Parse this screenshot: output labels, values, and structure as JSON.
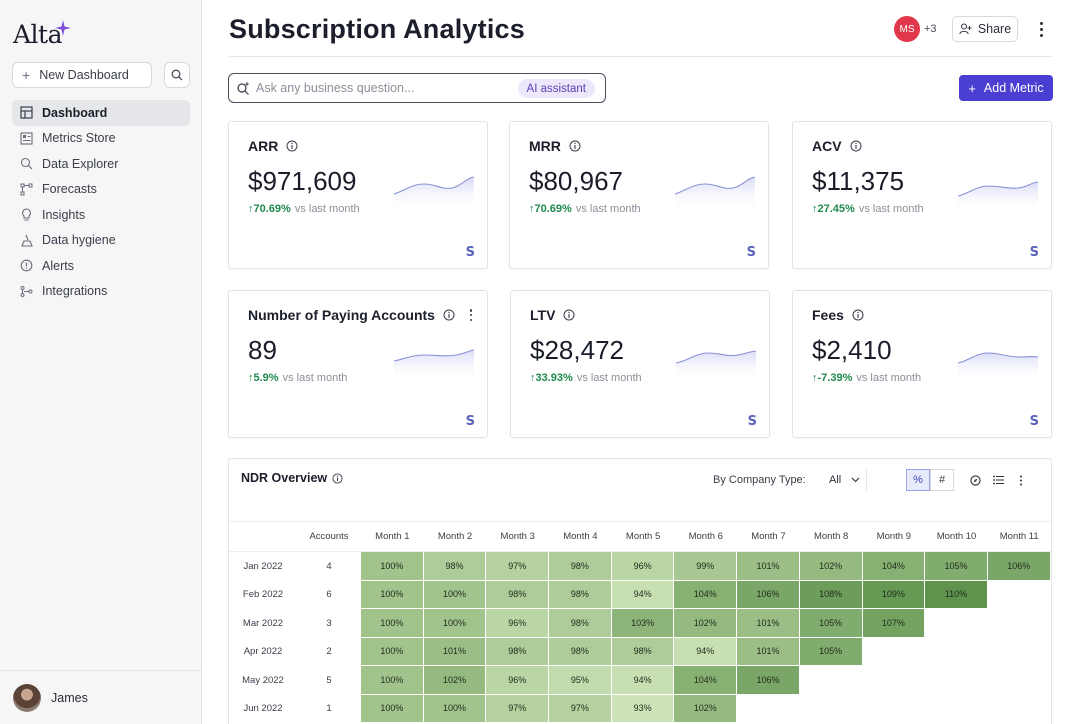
{
  "app": {
    "logo": "Alta",
    "new_dashboard_label": "New Dashboard",
    "accent_color": "#4a3fd1"
  },
  "sidebar": {
    "items": [
      {
        "label": "Dashboard",
        "icon": "dashboard-icon",
        "active": true
      },
      {
        "label": "Metrics Store",
        "icon": "metrics-store-icon"
      },
      {
        "label": "Data Explorer",
        "icon": "data-explorer-icon"
      },
      {
        "label": "Forecasts",
        "icon": "forecasts-icon"
      },
      {
        "label": "Insights",
        "icon": "insights-icon"
      },
      {
        "label": "Data hygiene",
        "icon": "data-hygiene-icon"
      },
      {
        "label": "Alerts",
        "icon": "alerts-icon"
      },
      {
        "label": "Integrations",
        "icon": "integrations-icon"
      }
    ],
    "user_name": "James"
  },
  "header": {
    "title": "Subscription Analytics",
    "collaborator_initials": "MS",
    "collaborator_extra": "+3",
    "share_label": "Share"
  },
  "ask": {
    "placeholder": "Ask any business question...",
    "ai_label": "AI assistant"
  },
  "add_metric_label": "Add Metric",
  "metrics": [
    {
      "title": "ARR",
      "value": "$971,609",
      "change": "70.69%",
      "vs": "vs last month"
    },
    {
      "title": "MRR",
      "value": "$80,967",
      "change": "70.69%",
      "vs": "vs last month"
    },
    {
      "title": "ACV",
      "value": "$11,375",
      "change": "27.45%",
      "vs": "vs last month"
    },
    {
      "title": "Number of Paying Accounts",
      "value": "89",
      "change": "5.9%",
      "vs": "vs last month"
    },
    {
      "title": "LTV",
      "value": "$28,472",
      "change": "33.93%",
      "vs": "vs last month"
    },
    {
      "title": "Fees",
      "value": "$2,410",
      "change": "-7.39%",
      "vs": "vs last month"
    }
  ],
  "ndr": {
    "title": "NDR Overview",
    "filter_label": "By Company Type:",
    "filter_value": "All",
    "headers": {
      "accounts": "Accounts",
      "months": [
        "Month 1",
        "Month 2",
        "Month 3",
        "Month 4",
        "Month 5",
        "Month 6",
        "Month 7",
        "Month 8",
        "Month 9",
        "Month 10",
        "Month 11"
      ]
    },
    "rows": [
      {
        "month": "Jan 2022",
        "accounts": "4",
        "values": [
          100,
          98,
          97,
          98,
          96,
          99,
          101,
          102,
          104,
          105,
          106
        ]
      },
      {
        "month": "Feb 2022",
        "accounts": "6",
        "values": [
          100,
          100,
          98,
          98,
          94,
          104,
          106,
          108,
          109,
          110
        ]
      },
      {
        "month": "Mar 2022",
        "accounts": "3",
        "values": [
          100,
          100,
          96,
          98,
          103,
          102,
          101,
          105,
          107
        ]
      },
      {
        "month": "Apr 2022",
        "accounts": "2",
        "values": [
          100,
          101,
          98,
          98,
          98,
          94,
          101,
          105
        ]
      },
      {
        "month": "May 2022",
        "accounts": "5",
        "values": [
          100,
          102,
          96,
          95,
          94,
          104,
          106
        ]
      },
      {
        "month": "Jun 2022",
        "accounts": "1",
        "values": [
          100,
          100,
          97,
          97,
          93,
          102
        ]
      }
    ]
  }
}
